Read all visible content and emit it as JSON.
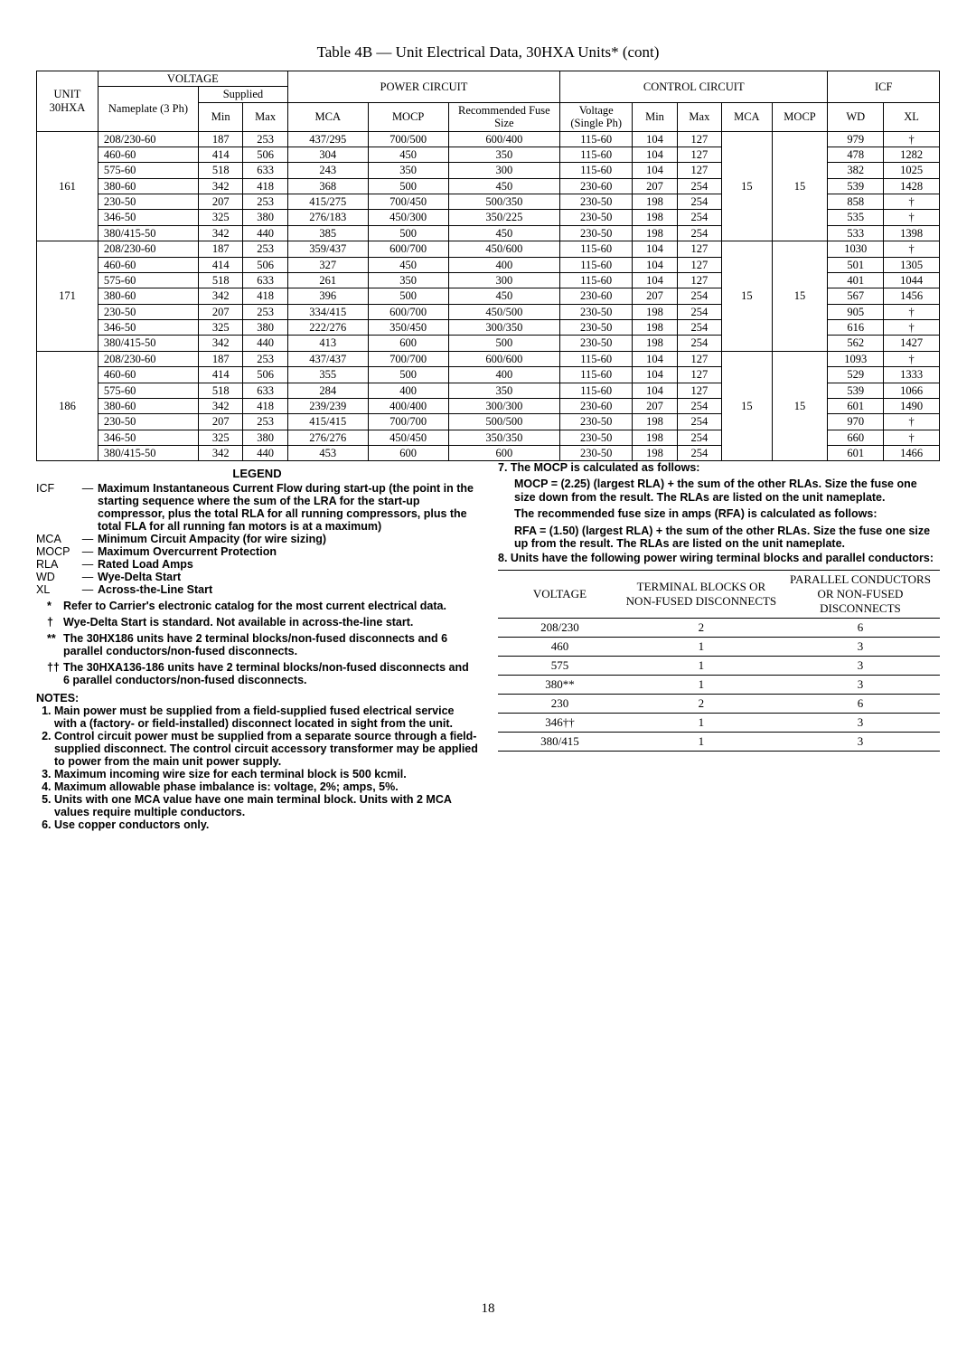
{
  "caption": "Table 4B — Unit Electrical Data, 30HXA Units* (cont)",
  "headers": {
    "unit": "UNIT 30HXA",
    "voltage": "VOLTAGE",
    "nameplate": "Nameplate (3 Ph)",
    "supplied": "Supplied",
    "min": "Min",
    "max": "Max",
    "power": "POWER CIRCUIT",
    "mca": "MCA",
    "mocp": "MOCP",
    "fuse": "Recommended Fuse Size",
    "control": "CONTROL CIRCUIT",
    "cvolt": "Voltage (Single Ph)",
    "icf": "ICF",
    "wd": "WD",
    "xl": "XL"
  },
  "units": [
    {
      "id": "161",
      "rows": [
        {
          "np": "208/230-60",
          "min": "187",
          "max": "253",
          "mca": "437/295",
          "mocp": "700/500",
          "fuse": "600/400",
          "cv": "115-60",
          "cmin": "104",
          "cmax": "127",
          "wd": "979",
          "xl": "†"
        },
        {
          "np": "460-60",
          "min": "414",
          "max": "506",
          "mca": "304",
          "mocp": "450",
          "fuse": "350",
          "cv": "115-60",
          "cmin": "104",
          "cmax": "127",
          "wd": "478",
          "xl": "1282"
        },
        {
          "np": "575-60",
          "min": "518",
          "max": "633",
          "mca": "243",
          "mocp": "350",
          "fuse": "300",
          "cv": "115-60",
          "cmin": "104",
          "cmax": "127",
          "wd": "382",
          "xl": "1025"
        },
        {
          "np": "380-60",
          "min": "342",
          "max": "418",
          "mca": "368",
          "mocp": "500",
          "fuse": "450",
          "cv": "230-60",
          "cmin": "207",
          "cmax": "254",
          "wd": "539",
          "xl": "1428"
        },
        {
          "np": "230-50",
          "min": "207",
          "max": "253",
          "mca": "415/275",
          "mocp": "700/450",
          "fuse": "500/350",
          "cv": "230-50",
          "cmin": "198",
          "cmax": "254",
          "wd": "858",
          "xl": "†"
        },
        {
          "np": "346-50",
          "min": "325",
          "max": "380",
          "mca": "276/183",
          "mocp": "450/300",
          "fuse": "350/225",
          "cv": "230-50",
          "cmin": "198",
          "cmax": "254",
          "wd": "535",
          "xl": "†"
        },
        {
          "np": "380/415-50",
          "min": "342",
          "max": "440",
          "mca": "385",
          "mocp": "500",
          "fuse": "450",
          "cv": "230-50",
          "cmin": "198",
          "cmax": "254",
          "wd": "533",
          "xl": "1398"
        }
      ],
      "cmca": "15",
      "cmocp": "15"
    },
    {
      "id": "171",
      "rows": [
        {
          "np": "208/230-60",
          "min": "187",
          "max": "253",
          "mca": "359/437",
          "mocp": "600/700",
          "fuse": "450/600",
          "cv": "115-60",
          "cmin": "104",
          "cmax": "127",
          "wd": "1030",
          "xl": "†"
        },
        {
          "np": "460-60",
          "min": "414",
          "max": "506",
          "mca": "327",
          "mocp": "450",
          "fuse": "400",
          "cv": "115-60",
          "cmin": "104",
          "cmax": "127",
          "wd": "501",
          "xl": "1305"
        },
        {
          "np": "575-60",
          "min": "518",
          "max": "633",
          "mca": "261",
          "mocp": "350",
          "fuse": "300",
          "cv": "115-60",
          "cmin": "104",
          "cmax": "127",
          "wd": "401",
          "xl": "1044"
        },
        {
          "np": "380-60",
          "min": "342",
          "max": "418",
          "mca": "396",
          "mocp": "500",
          "fuse": "450",
          "cv": "230-60",
          "cmin": "207",
          "cmax": "254",
          "wd": "567",
          "xl": "1456"
        },
        {
          "np": "230-50",
          "min": "207",
          "max": "253",
          "mca": "334/415",
          "mocp": "600/700",
          "fuse": "450/500",
          "cv": "230-50",
          "cmin": "198",
          "cmax": "254",
          "wd": "905",
          "xl": "†"
        },
        {
          "np": "346-50",
          "min": "325",
          "max": "380",
          "mca": "222/276",
          "mocp": "350/450",
          "fuse": "300/350",
          "cv": "230-50",
          "cmin": "198",
          "cmax": "254",
          "wd": "616",
          "xl": "†"
        },
        {
          "np": "380/415-50",
          "min": "342",
          "max": "440",
          "mca": "413",
          "mocp": "600",
          "fuse": "500",
          "cv": "230-50",
          "cmin": "198",
          "cmax": "254",
          "wd": "562",
          "xl": "1427"
        }
      ],
      "cmca": "15",
      "cmocp": "15"
    },
    {
      "id": "186",
      "rows": [
        {
          "np": "208/230-60",
          "min": "187",
          "max": "253",
          "mca": "437/437",
          "mocp": "700/700",
          "fuse": "600/600",
          "cv": "115-60",
          "cmin": "104",
          "cmax": "127",
          "wd": "1093",
          "xl": "†"
        },
        {
          "np": "460-60",
          "min": "414",
          "max": "506",
          "mca": "355",
          "mocp": "500",
          "fuse": "400",
          "cv": "115-60",
          "cmin": "104",
          "cmax": "127",
          "wd": "529",
          "xl": "1333"
        },
        {
          "np": "575-60",
          "min": "518",
          "max": "633",
          "mca": "284",
          "mocp": "400",
          "fuse": "350",
          "cv": "115-60",
          "cmin": "104",
          "cmax": "127",
          "wd": "539",
          "xl": "1066"
        },
        {
          "np": "380-60",
          "min": "342",
          "max": "418",
          "mca": "239/239",
          "mocp": "400/400",
          "fuse": "300/300",
          "cv": "230-60",
          "cmin": "207",
          "cmax": "254",
          "wd": "601",
          "xl": "1490"
        },
        {
          "np": "230-50",
          "min": "207",
          "max": "253",
          "mca": "415/415",
          "mocp": "700/700",
          "fuse": "500/500",
          "cv": "230-50",
          "cmin": "198",
          "cmax": "254",
          "wd": "970",
          "xl": "†"
        },
        {
          "np": "346-50",
          "min": "325",
          "max": "380",
          "mca": "276/276",
          "mocp": "450/450",
          "fuse": "350/350",
          "cv": "230-50",
          "cmin": "198",
          "cmax": "254",
          "wd": "660",
          "xl": "†"
        },
        {
          "np": "380/415-50",
          "min": "342",
          "max": "440",
          "mca": "453",
          "mocp": "600",
          "fuse": "600",
          "cv": "230-50",
          "cmin": "198",
          "cmax": "254",
          "wd": "601",
          "xl": "1466"
        }
      ],
      "cmca": "15",
      "cmocp": "15"
    }
  ],
  "legend_title": "LEGEND",
  "legend": [
    {
      "a": "ICF",
      "d": "Maximum Instantaneous Current Flow during start-up (the point in the starting sequence where the sum of the LRA for the start-up compressor, plus the total RLA for all running compressors, plus the total FLA for all running fan motors is at a maximum)"
    },
    {
      "a": "MCA",
      "d": "Minimum Circuit Ampacity (for wire sizing)"
    },
    {
      "a": "MOCP",
      "d": "Maximum Overcurrent Protection"
    },
    {
      "a": "RLA",
      "d": "Rated Load Amps"
    },
    {
      "a": "WD",
      "d": "Wye-Delta Start"
    },
    {
      "a": "XL",
      "d": "Across-the-Line Start"
    }
  ],
  "starnotes": [
    {
      "m": "*",
      "t": "Refer to Carrier's electronic catalog for the most current electrical data."
    },
    {
      "m": "†",
      "t": "Wye-Delta Start is standard. Not available in across-the-line start."
    },
    {
      "m": "**",
      "t": "The 30HX186 units have 2 terminal blocks/non-fused disconnects and 6 parallel conductors/non-fused disconnects."
    },
    {
      "m": "††",
      "t": "The 30HXA136-186 units have 2 terminal blocks/non-fused disconnects and 6 parallel conductors/non-fused disconnects."
    }
  ],
  "notes_title": "NOTES:",
  "notes": [
    "Main power must be supplied from a field-supplied fused electrical service with a (factory- or field-installed) disconnect located in sight from the unit.",
    "Control circuit power must be supplied from a separate source through a field-supplied disconnect. The control circuit accessory transformer may be applied to power from the main unit power supply.",
    "Maximum incoming wire size for each terminal block is 500 kcmil.",
    "Maximum allowable phase imbalance is: voltage, 2%; amps, 5%.",
    "Units with one MCA value have one main terminal block. Units with 2 MCA values require multiple conductors.",
    "Use copper conductors only."
  ],
  "note7_title": "7.  The MOCP is calculated as follows:",
  "mocp_formula": "MOCP = (2.25) (largest RLA) + the sum of the other RLAs. Size the fuse one size down from the result. The RLAs are listed on the unit nameplate.",
  "rfa_intro": "The recommended fuse size in amps (RFA) is calculated as follows:",
  "rfa_formula": "RFA = (1.50) (largest RLA) + the sum of the other RLAs. Size the fuse one size up from the result. The RLAs are listed on the unit nameplate.",
  "note8": "8.  Units have the following power wiring terminal blocks and parallel conductors:",
  "term_headers": {
    "v": "VOLTAGE",
    "t": "TERMINAL BLOCKS OR NON-FUSED DISCONNECTS",
    "p": "PARALLEL CONDUCTORS OR NON-FUSED DISCONNECTS"
  },
  "term_rows": [
    {
      "v": "208/230",
      "t": "2",
      "p": "6"
    },
    {
      "v": "460",
      "t": "1",
      "p": "3"
    },
    {
      "v": "575",
      "t": "1",
      "p": "3"
    },
    {
      "v": "380**",
      "t": "1",
      "p": "3"
    },
    {
      "v": "230",
      "t": "2",
      "p": "6"
    },
    {
      "v": "346††",
      "t": "1",
      "p": "3"
    },
    {
      "v": "380/415",
      "t": "1",
      "p": "3"
    }
  ],
  "page": "18"
}
